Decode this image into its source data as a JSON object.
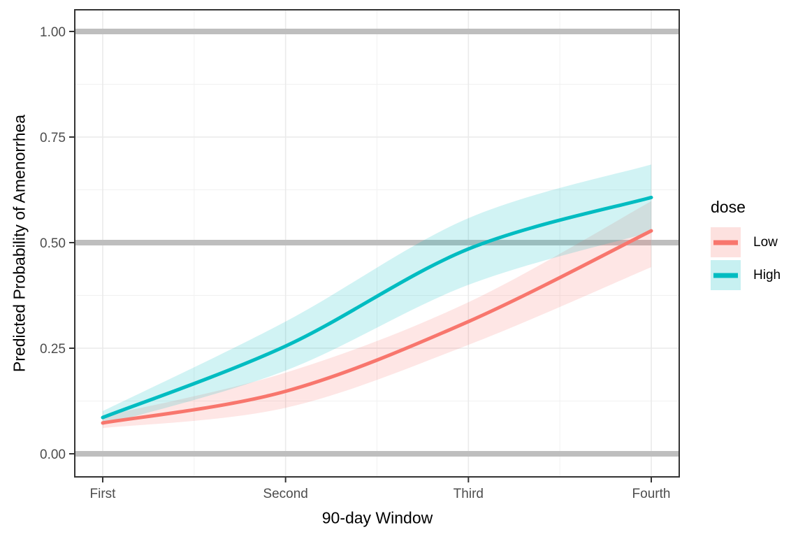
{
  "chart_data": {
    "type": "line",
    "xlabel": "90-day Window",
    "ylabel": "Predicted Probability of Amenorrhea",
    "categories": [
      "First",
      "Second",
      "Third",
      "Fourth"
    ],
    "y_ticks": [
      "0.00",
      "0.25",
      "0.50",
      "0.75",
      "1.00"
    ],
    "y_tick_values": [
      0,
      0.25,
      0.5,
      0.75,
      1.0
    ],
    "y_minor_values": [
      0.125,
      0.375,
      0.625,
      0.875
    ],
    "ylim": [
      0,
      1
    ],
    "grid": "on",
    "hlines": [
      0,
      0.5,
      1.0
    ],
    "legend_title": "dose",
    "legend_position": "right",
    "series": [
      {
        "name": "Low",
        "color": "#F8766D",
        "values": [
          0.073,
          0.148,
          0.313,
          0.528
        ],
        "ci_low": [
          0.061,
          0.109,
          0.258,
          0.442
        ],
        "ci_high": [
          0.089,
          0.192,
          0.359,
          0.598
        ]
      },
      {
        "name": "High",
        "color": "#00BCC1",
        "values": [
          0.086,
          0.255,
          0.485,
          0.607
        ],
        "ci_low": [
          0.068,
          0.197,
          0.4,
          0.525
        ],
        "ci_high": [
          0.101,
          0.313,
          0.558,
          0.685
        ]
      }
    ],
    "style": {
      "hline_color": "#BEBEBE",
      "grid_major": "#EAEAEA",
      "grid_minor": "#F1F1F1",
      "panel_border": "#343434",
      "tick_color": "#343434",
      "tick_label_color": "#4D4D4D",
      "ribbon_opacity": 0.18,
      "legend_key_opacity": 0.22,
      "line_width": 5
    }
  }
}
